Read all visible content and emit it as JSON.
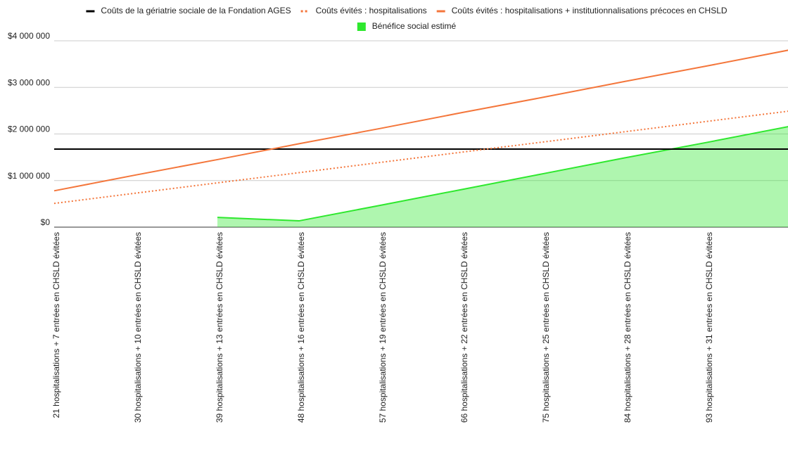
{
  "chart_data": {
    "type": "line",
    "categories": [
      "21 hospitalisations + 7 entrées en CHSLD évitées",
      "30 hospitalisations + 10 entrées en CHSLD évitées",
      "39 hospitalisations + 13 entrées en CHSLD évitées",
      "48 hospitalisations + 16 entrées en CHSLD évitées",
      "57 hospitalisations + 19 entrées en CHSLD évitées",
      "66 hospitalisations + 22 entrées en CHSLD évitées",
      "75 hospitalisations + 25 entrées en CHSLD évitées",
      "84 hospitalisations + 28 entrées en CHSLD évitées",
      "93 hospitalisations + 31 entrées en CHSLD évitées",
      null
    ],
    "series": [
      {
        "name": "Coûts de la gériatrie sociale de la Fondation AGES",
        "color": "#000000",
        "style": "solid",
        "values": [
          1675000,
          1675000,
          1675000,
          1675000,
          1675000,
          1675000,
          1675000,
          1675000,
          1675000,
          1675000
        ]
      },
      {
        "name": "Coûts évités : hospitalisations",
        "color": "#f4763b",
        "style": "dotted",
        "values": [
          510000,
          730000,
          950000,
          1170000,
          1390000,
          1610000,
          1830000,
          2050000,
          2270000,
          2490000
        ]
      },
      {
        "name": "Coûts évités : hospitalisations + institutionnalisations précoces en CHSLD",
        "color": "#f4763b",
        "style": "solid",
        "values": [
          780000,
          1120000,
          1450000,
          1790000,
          2120000,
          2460000,
          2790000,
          3130000,
          3460000,
          3800000
        ]
      },
      {
        "name": "Bénéfice social estimé",
        "color": "#2ee82e",
        "style": "area",
        "values": [
          null,
          null,
          210000,
          135000,
          470000,
          810000,
          1150000,
          1490000,
          1820000,
          2160000
        ]
      }
    ],
    "ylim": [
      0,
      4000000
    ],
    "yticks": [
      {
        "value": 0,
        "label": "$0"
      },
      {
        "value": 1000000,
        "label": "$1 000 000"
      },
      {
        "value": 2000000,
        "label": "$2 000 000"
      },
      {
        "value": 3000000,
        "label": "$3 000 000"
      },
      {
        "value": 4000000,
        "label": "$4 000 000"
      }
    ],
    "grid": true,
    "legend": "top"
  }
}
